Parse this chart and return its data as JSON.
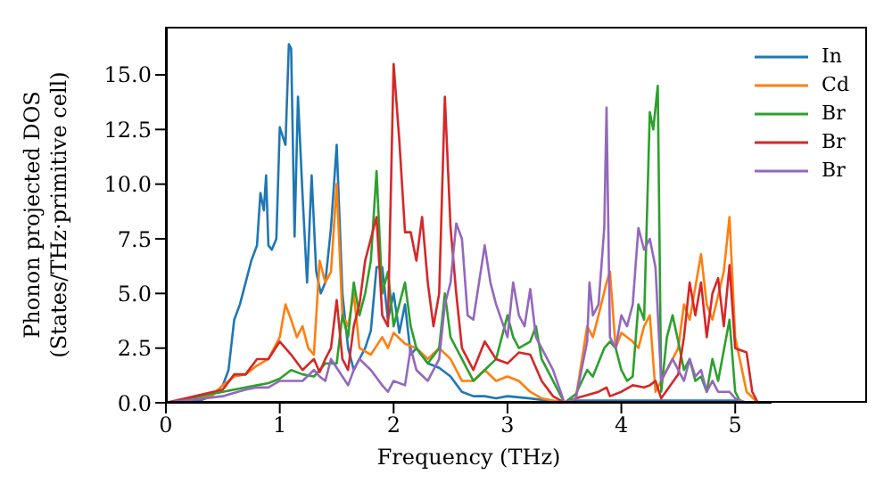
{
  "chart_data": {
    "type": "line",
    "xlabel": "Frequency (THz)",
    "ylabel": "Phonon projected DOS\n(States/THz·primitive cell)",
    "xlim": [
      0,
      5.32
    ],
    "xticks": [
      0,
      1,
      2,
      3,
      4,
      5
    ],
    "ylim": [
      0,
      17.2
    ],
    "yticks": [
      {
        "value": 0,
        "label": "0.0"
      },
      2.5,
      {
        "value": 5,
        "label": "5.0"
      },
      7.5,
      {
        "value": 10,
        "label": "10.0"
      },
      12.5,
      {
        "value": 15,
        "label": "15.0"
      }
    ],
    "legend": "top right",
    "marker": "none",
    "line_style": "solid",
    "series": [
      {
        "name": "In",
        "color": "#1f77b4",
        "x": [
          0,
          0.3,
          0.4,
          0.5,
          0.55,
          0.6,
          0.65,
          0.7,
          0.75,
          0.8,
          0.83,
          0.86,
          0.88,
          0.9,
          0.93,
          0.97,
          1.0,
          1.05,
          1.08,
          1.1,
          1.13,
          1.16,
          1.2,
          1.24,
          1.28,
          1.32,
          1.36,
          1.4,
          1.45,
          1.5,
          1.55,
          1.6,
          1.65,
          1.7,
          1.75,
          1.8,
          1.85,
          1.9,
          1.95,
          2.0,
          2.05,
          2.1,
          2.15,
          2.2,
          2.3,
          2.4,
          2.5,
          2.6,
          2.7,
          2.8,
          2.9,
          3.0,
          3.2,
          3.5,
          3.6,
          4.0,
          4.5,
          5.0,
          5.05
        ],
        "values": [
          0,
          0.1,
          0.3,
          0.8,
          1.5,
          3.8,
          4.5,
          5.5,
          6.5,
          7.2,
          9.6,
          8.8,
          10.4,
          7.2,
          7.0,
          7.5,
          12.6,
          11.8,
          16.4,
          16.2,
          7.6,
          14.0,
          9.5,
          5.5,
          10.4,
          6.0,
          5.0,
          5.5,
          8.0,
          11.8,
          5.0,
          2.5,
          1.5,
          2.0,
          2.5,
          3.3,
          6.2,
          6.2,
          3.8,
          5.0,
          3.2,
          4.5,
          2.2,
          2.5,
          1.8,
          1.6,
          1.2,
          0.5,
          0.3,
          0.3,
          0.2,
          0.3,
          0.2,
          0.0,
          0.1,
          0.1,
          0.1,
          0.1,
          0
        ]
      },
      {
        "name": "Cd",
        "color": "#ff7f0e",
        "x": [
          0,
          0.4,
          0.5,
          0.6,
          0.7,
          0.8,
          0.9,
          1.0,
          1.05,
          1.1,
          1.15,
          1.2,
          1.25,
          1.3,
          1.35,
          1.4,
          1.45,
          1.5,
          1.55,
          1.6,
          1.65,
          1.7,
          1.8,
          1.9,
          1.95,
          2.0,
          2.1,
          2.2,
          2.3,
          2.4,
          2.5,
          2.6,
          2.7,
          2.8,
          2.9,
          3.0,
          3.1,
          3.2,
          3.3,
          3.5,
          3.6,
          3.7,
          3.75,
          3.8,
          3.87,
          3.9,
          3.95,
          4.0,
          4.1,
          4.15,
          4.2,
          4.25,
          4.3,
          4.4,
          4.5,
          4.55,
          4.6,
          4.7,
          4.75,
          4.8,
          4.9,
          4.95,
          5.0,
          5.1,
          5.2
        ],
        "values": [
          0,
          0.3,
          0.8,
          1.2,
          1.3,
          1.7,
          2.0,
          3.0,
          4.5,
          3.8,
          3.0,
          3.5,
          2.5,
          2.2,
          6.5,
          5.5,
          6.0,
          10.0,
          4.0,
          3.5,
          5.0,
          2.5,
          2.2,
          3.0,
          2.5,
          3.2,
          2.7,
          2.5,
          2.0,
          2.5,
          2.0,
          1.0,
          1.0,
          1.5,
          1.0,
          1.2,
          1.0,
          0.5,
          0.2,
          0,
          0.2,
          3.5,
          3.0,
          4.0,
          5.5,
          6.0,
          2.5,
          3.2,
          2.8,
          2.5,
          3.5,
          4.0,
          0.5,
          1.5,
          2.5,
          4.5,
          3.8,
          6.8,
          4.5,
          3.8,
          6.0,
          8.5,
          3.0,
          0.5,
          0
        ]
      },
      {
        "name": "Br",
        "color": "#2ca02c",
        "x": [
          0,
          0.5,
          0.7,
          0.8,
          0.9,
          1.0,
          1.1,
          1.2,
          1.3,
          1.4,
          1.5,
          1.55,
          1.6,
          1.65,
          1.7,
          1.75,
          1.8,
          1.85,
          1.9,
          1.95,
          2.0,
          2.05,
          2.1,
          2.15,
          2.2,
          2.3,
          2.4,
          2.45,
          2.5,
          2.6,
          2.7,
          2.8,
          2.9,
          3.0,
          3.05,
          3.1,
          3.2,
          3.25,
          3.3,
          3.4,
          3.5,
          3.6,
          3.7,
          3.75,
          3.85,
          3.9,
          3.95,
          4.0,
          4.05,
          4.1,
          4.15,
          4.2,
          4.25,
          4.28,
          4.32,
          4.35,
          4.4,
          4.45,
          4.5,
          4.55,
          4.6,
          4.65,
          4.7,
          4.75,
          4.8,
          4.85,
          4.95,
          5.0,
          5.05
        ],
        "values": [
          0,
          0.5,
          0.7,
          0.8,
          0.9,
          1.1,
          1.5,
          1.3,
          1.2,
          1.8,
          1.8,
          4.0,
          3.0,
          5.5,
          4.0,
          5.0,
          6.5,
          10.6,
          5.0,
          6.0,
          3.5,
          4.5,
          5.5,
          3.5,
          2.5,
          1.8,
          2.5,
          5.0,
          3.0,
          2.0,
          1.0,
          1.5,
          2.0,
          4.0,
          3.0,
          2.5,
          2.8,
          3.5,
          2.0,
          1.0,
          0,
          0.4,
          1.5,
          1.2,
          2.5,
          2.8,
          2.5,
          1.5,
          1.0,
          1.2,
          4.5,
          3.8,
          13.3,
          12.5,
          14.5,
          0.5,
          3.0,
          4.0,
          2.8,
          1.5,
          2.0,
          1.0,
          1.2,
          0.5,
          2.0,
          1.0,
          3.8,
          0.5,
          0
        ]
      },
      {
        "name": "Br",
        "color": "#d62728",
        "x": [
          0,
          0.5,
          0.6,
          0.7,
          0.8,
          0.9,
          1.0,
          1.1,
          1.2,
          1.3,
          1.35,
          1.4,
          1.45,
          1.5,
          1.55,
          1.6,
          1.65,
          1.7,
          1.75,
          1.8,
          1.85,
          1.9,
          1.95,
          2.0,
          2.05,
          2.1,
          2.15,
          2.2,
          2.25,
          2.3,
          2.35,
          2.4,
          2.45,
          2.5,
          2.55,
          2.6,
          2.7,
          2.8,
          2.9,
          3.0,
          3.1,
          3.2,
          3.3,
          3.4,
          3.5,
          3.6,
          3.8,
          3.87,
          3.9,
          4.0,
          4.1,
          4.2,
          4.25,
          4.3,
          4.35,
          4.5,
          4.55,
          4.6,
          4.65,
          4.7,
          4.75,
          4.8,
          4.85,
          4.9,
          4.95,
          5.0,
          5.1,
          5.15,
          5.2
        ],
        "values": [
          0,
          0.6,
          1.3,
          1.3,
          2.0,
          2.0,
          2.8,
          2.2,
          1.5,
          2.0,
          1.4,
          2.0,
          2.5,
          4.7,
          2.0,
          1.5,
          3.5,
          4.5,
          6.5,
          7.5,
          8.5,
          4.0,
          3.5,
          15.5,
          12.0,
          7.8,
          7.8,
          6.5,
          8.5,
          5.5,
          3.5,
          5.0,
          14.0,
          8.0,
          5.0,
          2.5,
          1.5,
          2.8,
          2.0,
          1.8,
          2.3,
          2.2,
          1.0,
          0.3,
          0,
          0.2,
          0.5,
          0.7,
          0.3,
          0.5,
          0.8,
          0.7,
          0.8,
          1.0,
          0.2,
          1.3,
          3.0,
          5.5,
          4.0,
          5.5,
          3.0,
          5.0,
          5.7,
          3.5,
          6.3,
          2.5,
          2.3,
          0.5,
          0
        ]
      },
      {
        "name": "Br",
        "color": "#9467bd",
        "x": [
          0,
          0.5,
          0.7,
          0.8,
          0.9,
          1.0,
          1.1,
          1.2,
          1.3,
          1.35,
          1.4,
          1.45,
          1.5,
          1.55,
          1.6,
          1.65,
          1.7,
          1.8,
          1.9,
          1.95,
          2.0,
          2.1,
          2.15,
          2.2,
          2.3,
          2.4,
          2.45,
          2.5,
          2.55,
          2.6,
          2.65,
          2.7,
          2.8,
          2.85,
          2.9,
          3.0,
          3.05,
          3.1,
          3.15,
          3.2,
          3.25,
          3.3,
          3.4,
          3.5,
          3.6,
          3.7,
          3.72,
          3.75,
          3.8,
          3.85,
          3.87,
          3.9,
          3.95,
          4.0,
          4.05,
          4.1,
          4.15,
          4.2,
          4.25,
          4.3,
          4.35,
          4.4,
          4.45,
          4.5,
          4.55,
          4.6,
          4.65,
          4.7,
          4.75,
          4.8,
          4.85,
          4.95,
          5.0,
          5.1
        ],
        "values": [
          0,
          0.3,
          0.6,
          0.7,
          0.7,
          1.0,
          1.0,
          1.0,
          1.5,
          1.2,
          1.0,
          2.0,
          1.6,
          1.2,
          0.8,
          1.5,
          2.0,
          1.5,
          0.8,
          0.5,
          1.0,
          0.8,
          2.5,
          1.5,
          1.0,
          2.0,
          4.5,
          5.5,
          8.2,
          7.5,
          4.0,
          3.8,
          7.2,
          5.5,
          4.5,
          3.0,
          5.5,
          4.0,
          3.5,
          5.2,
          3.0,
          2.5,
          1.5,
          0,
          0.2,
          2.8,
          5.5,
          4.0,
          4.5,
          8.0,
          13.5,
          3.0,
          2.5,
          4.0,
          3.5,
          4.5,
          8.0,
          7.0,
          7.5,
          6.2,
          1.0,
          1.5,
          2.0,
          1.5,
          1.0,
          2.0,
          1.2,
          1.5,
          0.5,
          1.0,
          0.5,
          0.5,
          0.2,
          0
        ]
      }
    ]
  }
}
